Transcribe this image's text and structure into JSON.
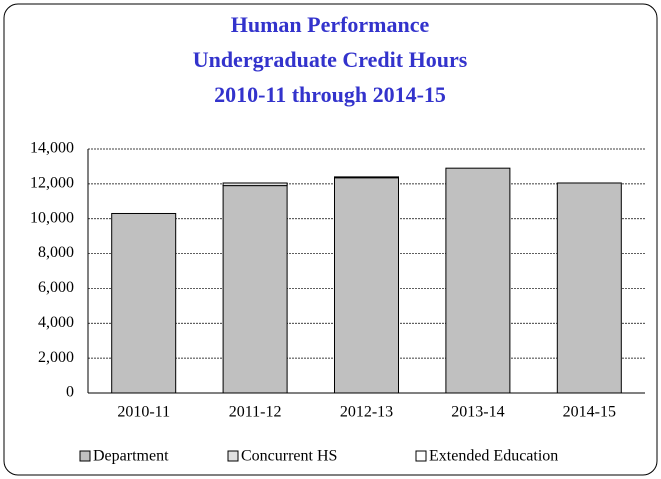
{
  "chart_data": {
    "type": "stacked_bar",
    "title": [
      "Human Performance",
      "Undergraduate Credit Hours",
      "2010-11 through 2014-15"
    ],
    "categories": [
      "2010-11",
      "2011-12",
      "2012-13",
      "2013-14",
      "2014-15"
    ],
    "series": [
      {
        "name": "Department",
        "color": "#c0c0c0",
        "values": [
          10300,
          11900,
          12350,
          12900,
          12050
        ]
      },
      {
        "name": "Concurrent HS",
        "color": "#e0e0e0",
        "values": [
          0,
          150,
          50,
          0,
          0
        ]
      },
      {
        "name": "Extended Education",
        "color": "#ffffff",
        "values": [
          0,
          0,
          0,
          0,
          0
        ]
      }
    ],
    "ylim": [
      0,
      14000
    ],
    "yticks": [
      0,
      {
        "value": 2000,
        "label": "2,000"
      },
      {
        "value": 4000,
        "label": "4,000"
      },
      {
        "value": 6000,
        "label": "6,000"
      },
      {
        "value": 8000,
        "label": "8,000"
      },
      {
        "value": 10000,
        "label": "10,000"
      },
      {
        "value": 12000,
        "label": "12,000"
      },
      {
        "value": 14000,
        "label": "14,000"
      }
    ],
    "grid": true,
    "legend": "bottom"
  }
}
